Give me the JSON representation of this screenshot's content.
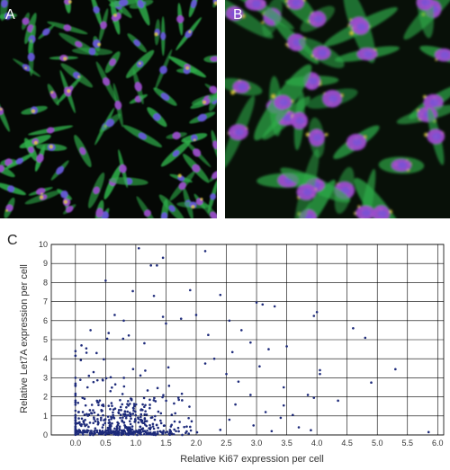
{
  "panels": {
    "a_label": "A",
    "b_label": "B",
    "c_label": "C",
    "a_description": "fluorescence micrograph of dense spindle-shaped cells with green cytoplasm and magenta/blue nuclei",
    "b_description": "fluorescence micrograph at higher magnification of cells with green cytoplasm, yellow puncta and magenta/blue nuclei"
  },
  "colors": {
    "background_micrograph": "#050805",
    "cytoplasm": "#2fae4a",
    "nucleus": "#a04ad0",
    "nucleus_core": "#6a55e0",
    "puncta": "#e6d23a",
    "scatter_point": "#1d2a7a",
    "grid": "#000000"
  },
  "chart_data": {
    "type": "scatter",
    "title": "",
    "xlabel": "Relative Ki67 expression per cell",
    "ylabel": "Relative Let7A expression per cell",
    "xlim": [
      -0.4,
      6.1
    ],
    "ylim": [
      0,
      10
    ],
    "xticks": [
      "0.0",
      "0.5",
      "1.0",
      "1.5",
      "2.0",
      "2.5",
      "3.0",
      "3.5",
      "4.0",
      "4.5",
      "5.0",
      "5.5",
      "6.0"
    ],
    "yticks": [
      "0",
      "1",
      "2",
      "3",
      "4",
      "5",
      "6",
      "7",
      "8",
      "9",
      "10"
    ],
    "grid": true,
    "series": [
      {
        "points": [
          [
            1.05,
            9.8
          ],
          [
            1.35,
            8.9
          ],
          [
            1.25,
            8.9
          ],
          [
            1.45,
            9.3
          ],
          [
            0.5,
            8.1
          ],
          [
            2.15,
            9.65
          ],
          [
            0.95,
            7.55
          ],
          [
            1.9,
            7.6
          ],
          [
            2.4,
            7.35
          ],
          [
            1.3,
            7.3
          ],
          [
            3.0,
            6.95
          ],
          [
            3.1,
            6.85
          ],
          [
            3.3,
            6.75
          ],
          [
            4.0,
            6.45
          ],
          [
            3.95,
            6.25
          ],
          [
            4.6,
            5.6
          ],
          [
            4.8,
            5.1
          ],
          [
            5.3,
            3.45
          ],
          [
            4.9,
            2.75
          ],
          [
            5.85,
            0.15
          ],
          [
            4.05,
            3.4
          ],
          [
            4.05,
            3.2
          ],
          [
            3.5,
            4.65
          ],
          [
            2.55,
            6.0
          ],
          [
            2.75,
            5.5
          ],
          [
            2.9,
            4.85
          ],
          [
            3.2,
            4.5
          ],
          [
            3.05,
            3.6
          ],
          [
            3.45,
            2.5
          ],
          [
            3.45,
            1.55
          ],
          [
            3.85,
            2.1
          ],
          [
            3.95,
            1.95
          ],
          [
            4.35,
            1.8
          ],
          [
            3.4,
            0.9
          ],
          [
            3.6,
            1.05
          ],
          [
            2.0,
            6.3
          ],
          [
            1.75,
            6.1
          ],
          [
            1.45,
            6.2
          ],
          [
            1.5,
            5.85
          ],
          [
            0.8,
            6.0
          ],
          [
            0.65,
            6.3
          ],
          [
            0.55,
            5.35
          ],
          [
            0.25,
            5.5
          ],
          [
            0.35,
            4.3
          ],
          [
            0.1,
            4.7
          ],
          [
            2.2,
            5.25
          ],
          [
            2.6,
            4.35
          ],
          [
            2.3,
            4.0
          ],
          [
            2.15,
            3.75
          ],
          [
            2.5,
            3.2
          ],
          [
            2.7,
            2.8
          ],
          [
            2.9,
            2.1
          ],
          [
            2.65,
            1.6
          ],
          [
            3.15,
            1.2
          ],
          [
            2.95,
            0.5
          ],
          [
            2.55,
            0.8
          ],
          [
            3.25,
            0.2
          ],
          [
            3.7,
            0.4
          ],
          [
            3.9,
            0.25
          ],
          [
            0.3,
            3.3
          ],
          [
            0.45,
            2.9
          ],
          [
            0.2,
            2.5
          ],
          [
            0.15,
            1.9
          ],
          [
            0.05,
            1.2
          ]
        ]
      }
    ],
    "cluster": {
      "x_mean": 0.75,
      "x_sd": 0.55,
      "y_mean": 1.6,
      "y_sd": 1.35,
      "count": 520
    }
  }
}
